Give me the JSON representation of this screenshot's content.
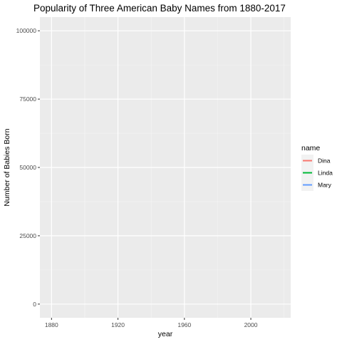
{
  "chart_data": {
    "type": "line",
    "title": "Popularity of Three American Baby Names from 1880-2017",
    "xlabel": "year",
    "ylabel": "Number of Babies Born",
    "xlim": [
      1873,
      2024
    ],
    "ylim": [
      -5000,
      105000
    ],
    "x_ticks": [
      1880,
      1920,
      1960,
      2000
    ],
    "x_minor_ticks": [
      1900,
      1940,
      1980,
      2020
    ],
    "y_ticks": [
      0,
      25000,
      50000,
      75000,
      100000
    ],
    "y_minor_ticks": [
      12500,
      37500,
      62500,
      87500
    ],
    "grid": true,
    "legend": {
      "title": "name",
      "placement": "right"
    },
    "series": [
      {
        "name": "Dina",
        "color": "#F8766D",
        "values": []
      },
      {
        "name": "Linda",
        "color": "#00BA38",
        "values": []
      },
      {
        "name": "Mary",
        "color": "#619CFF",
        "values": []
      }
    ]
  }
}
